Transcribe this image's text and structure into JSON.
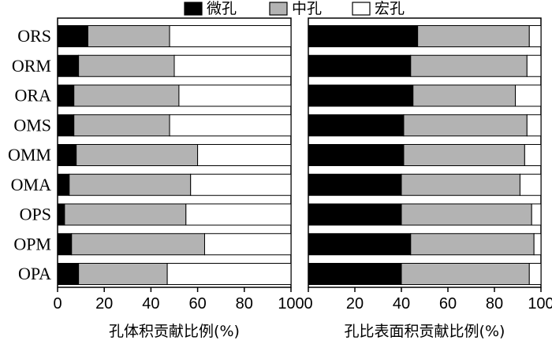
{
  "colors": {
    "micro": "#000000",
    "meso": "#b3b3b3",
    "macro": "#ffffff",
    "stroke": "#000000"
  },
  "chart_data": {
    "type": "bar",
    "orientation": "horizontal",
    "stacked": true,
    "legend": {
      "placement": "top",
      "entries": [
        "微孔",
        "中孔",
        "宏孔"
      ]
    },
    "categories": [
      "ORS",
      "ORM",
      "ORA",
      "OMS",
      "OMM",
      "OMA",
      "OPS",
      "OPM",
      "OPA"
    ],
    "panels": [
      {
        "xlabel": "孔体积贡献比例(%)",
        "xlim": [
          0,
          100
        ],
        "ticks": [
          0,
          20,
          40,
          60,
          80,
          100
        ],
        "series": [
          {
            "name": "微孔",
            "values": [
              13,
              9,
              7,
              7,
              8,
              5,
              3,
              6,
              9
            ]
          },
          {
            "name": "中孔",
            "values": [
              35,
              41,
              45,
              41,
              52,
              52,
              52,
              57,
              38
            ]
          },
          {
            "name": "宏孔",
            "values": [
              52,
              50,
              48,
              52,
              40,
              43,
              45,
              37,
              53
            ]
          }
        ]
      },
      {
        "xlabel": "孔比表面积贡献比例(%)",
        "xlim": [
          0,
          100
        ],
        "ticks": [
          0,
          20,
          40,
          60,
          80,
          100
        ],
        "series": [
          {
            "name": "微孔",
            "values": [
              47,
              44,
              45,
              41,
              41,
              40,
              40,
              44,
              40
            ]
          },
          {
            "name": "中孔",
            "values": [
              48,
              50,
              44,
              53,
              52,
              51,
              56,
              53,
              55
            ]
          },
          {
            "name": "宏孔",
            "values": [
              5,
              6,
              11,
              6,
              7,
              9,
              4,
              3,
              5
            ]
          }
        ]
      }
    ]
  }
}
